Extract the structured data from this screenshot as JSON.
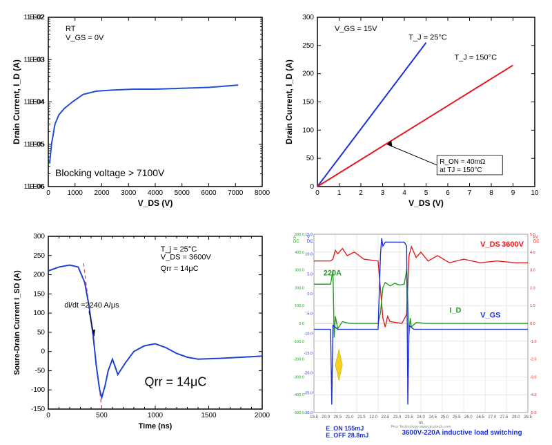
{
  "chart_tl": {
    "type": "line-log",
    "xlabel": "V_DS (V)",
    "ylabel": "Drain Current, I_D (A)",
    "cond1": "RT",
    "cond2": "V_GS = 0V",
    "annot": "Blocking voltage > 7100V",
    "xlim": [
      0,
      8000
    ],
    "xtick_step": 1000,
    "ylim_exp": [
      -6,
      -2
    ],
    "series": {
      "color": "#1f4fd8",
      "width": 2,
      "x": [
        50,
        120,
        250,
        400,
        600,
        900,
        1300,
        1800,
        2400,
        3200,
        4000,
        5000,
        6000,
        7100
      ],
      "y": [
        3.5e-06,
        1e-05,
        3e-05,
        5e-05,
        7e-05,
        0.0001,
        0.00015,
        0.00018,
        0.00019,
        0.0002,
        0.0002,
        0.00021,
        0.00022,
        0.00025
      ]
    },
    "border_color": "#000",
    "grid_color": "#e0e0e0",
    "bg": "#ffffff"
  },
  "chart_tr": {
    "type": "line",
    "xlabel": "V_DS (V)",
    "ylabel": "Drain Current, I_D (A)",
    "cond": "V_GS = 15V",
    "label25": "T_J = 25°C",
    "label150": "T_J = 150°C",
    "ron_line1": "R_ON = 40mΩ",
    "ron_line2": "at TJ = 150°C",
    "xlim": [
      0,
      10
    ],
    "xtick_step": 1,
    "ylim": [
      0,
      300
    ],
    "ytick_step": 50,
    "series25": {
      "color": "#1f2fd8",
      "width": 2,
      "x": [
        0,
        5
      ],
      "y": [
        0,
        255
      ]
    },
    "series150": {
      "color": "#e8141a",
      "width": 2,
      "x": [
        0,
        9
      ],
      "y": [
        0,
        215
      ]
    },
    "border_color": "#000",
    "bg": "#ffffff"
  },
  "chart_bl": {
    "type": "line",
    "xlabel": "Time (ns)",
    "ylabel": "Soure-Drain Current I_SD (A)",
    "cond1": "T_j = 25°C",
    "cond2": "V_DS = 3600V",
    "cond3": "Qrr = 14μC",
    "didt": "di/dt =2240 A/μs",
    "annot": "Qrr = 14μC",
    "xlim": [
      0,
      2000
    ],
    "xtick_step": 500,
    "ylim": [
      -150,
      300
    ],
    "ytick_step": 50,
    "series": {
      "color": "#2040d0",
      "width": 2,
      "x": [
        0,
        100,
        200,
        280,
        340,
        380,
        420,
        450,
        480,
        500,
        530,
        560,
        600,
        650,
        720,
        800,
        900,
        1000,
        1100,
        1200,
        1300,
        1400,
        1600,
        1800,
        2000
      ],
      "y": [
        210,
        220,
        225,
        220,
        180,
        120,
        40,
        -40,
        -100,
        -120,
        -90,
        -50,
        -20,
        -60,
        -30,
        0,
        15,
        20,
        10,
        -5,
        -15,
        -20,
        -18,
        -15,
        -12
      ]
    },
    "dash": {
      "color": "#e04040",
      "dash": "5,4",
      "x": [
        330,
        560
      ],
      "y": [
        230,
        -280
      ]
    },
    "border_color": "#000",
    "bg": "#ffffff"
  },
  "chart_br": {
    "type": "scope",
    "vds_label": "V_DS",
    "vds_val": "3600V",
    "id_label": "I_D",
    "id_val": "220A",
    "vgs_label": "V_GS",
    "eon": "E_ON 155mJ",
    "eoff": "E_OFF 28.8mJ",
    "title": "3600V-220A inductive load switching",
    "footer": "Pico Technology   www.picotech.com",
    "left_axis_label": "V\nDC",
    "left_axis2_label": "A\nDC",
    "right_axis_label": "kV\nDC",
    "xticks": [
      "19.5",
      "20.0",
      "20.5",
      "21.0",
      "21.5",
      "22.0",
      "22.5",
      "23.0",
      "23.5",
      "24.0",
      "24.5",
      "25.0",
      "25.5",
      "26.0",
      "26.5",
      "27.0",
      "27.5",
      "28.0",
      "28.5"
    ],
    "xtick_unit": "us",
    "left_ticks_blue": [
      "-30.0",
      "-25.0",
      "-20.0",
      "-15.0",
      "-10.0",
      "-5.0",
      "0.0",
      "5.0",
      "10.0",
      "15.0"
    ],
    "left_ticks_green": [
      "-500.0",
      "-400.0",
      "-300.0",
      "-200.0",
      "-100.0",
      "0.0",
      "100.0",
      "200.0",
      "300.0",
      "400.0",
      "500.0"
    ],
    "right_ticks_red": [
      "-5.0",
      "-4.0",
      "-3.0",
      "-2.0",
      "-1.0",
      "0.0",
      "1.0",
      "2.0",
      "3.0",
      "4.0",
      "5.0"
    ],
    "colors": {
      "vds": "#e81a1a",
      "id": "#1fa01f",
      "vgs": "#2030d0",
      "grid": "#d8d8d8",
      "bg": "#ffffff"
    },
    "vds": {
      "x": [
        19.5,
        20.2,
        20.3,
        20.4,
        20.5,
        20.7,
        20.9,
        21.2,
        21.6,
        22.2,
        22.4,
        22.5,
        22.6,
        22.7,
        23.2,
        23.4,
        23.5,
        23.6,
        23.8,
        24.0,
        24.3,
        24.7,
        25.2,
        25.8,
        26.5,
        27.2,
        28.0,
        28.5
      ],
      "y": [
        3.5,
        3.5,
        3.6,
        4.1,
        3.9,
        4.2,
        3.8,
        4.0,
        3.6,
        3.5,
        0.3,
        -0.2,
        0.4,
        0.1,
        0.0,
        0.5,
        3.8,
        4.3,
        3.7,
        4.0,
        3.5,
        3.8,
        3.4,
        3.6,
        3.4,
        3.5,
        3.4,
        3.4
      ]
    },
    "id_series": {
      "x": [
        19.5,
        20.2,
        20.3,
        20.35,
        20.4,
        20.5,
        20.7,
        21.0,
        22.2,
        22.3,
        22.4,
        22.5,
        22.7,
        22.9,
        23.1,
        23.3,
        23.4,
        23.5,
        23.55,
        23.6,
        23.8,
        24.2,
        25.0,
        26.0,
        27.0,
        28.5
      ],
      "y": [
        220,
        220,
        300,
        -80,
        40,
        -30,
        10,
        0,
        0,
        60,
        200,
        230,
        210,
        225,
        215,
        220,
        300,
        -60,
        30,
        -20,
        5,
        0,
        0,
        0,
        0,
        0
      ]
    },
    "vgs": {
      "x": [
        19.5,
        20.2,
        20.25,
        20.3,
        20.5,
        21.0,
        22.2,
        22.3,
        22.35,
        22.4,
        22.5,
        23.3,
        23.4,
        23.45,
        23.5,
        23.7,
        24.5,
        26.0,
        28.5
      ],
      "y": [
        -9,
        -9,
        -28,
        -8,
        -9,
        -9,
        -9,
        10,
        14,
        12,
        13,
        13,
        12,
        -28,
        -8,
        -9,
        -9,
        -9,
        -9
      ]
    }
  }
}
